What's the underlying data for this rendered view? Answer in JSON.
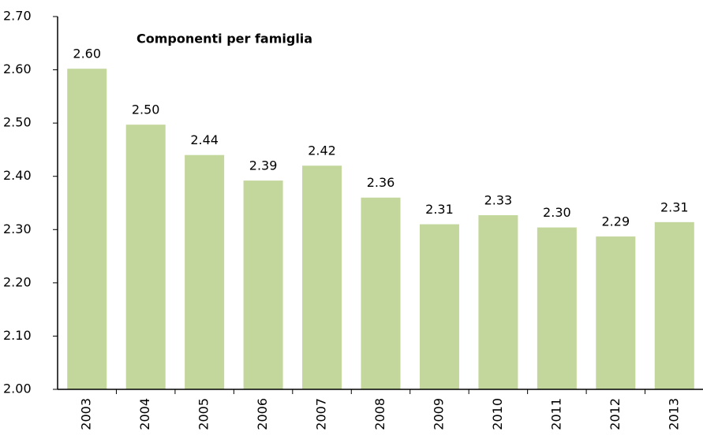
{
  "chart_data": {
    "type": "bar",
    "title": "Componenti per famiglia",
    "categories": [
      "2003",
      "2004",
      "2005",
      "2006",
      "2007",
      "2008",
      "2009",
      "2010",
      "2011",
      "2012",
      "2013"
    ],
    "values": [
      2.602,
      2.497,
      2.44,
      2.392,
      2.42,
      2.36,
      2.31,
      2.327,
      2.304,
      2.287,
      2.314
    ],
    "value_labels": [
      "2.60",
      "2.50",
      "2.44",
      "2.39",
      "2.42",
      "2.36",
      "2.31",
      "2.33",
      "2.30",
      "2.29",
      "2.31"
    ],
    "color": "#c3d69b",
    "ylim": [
      2.0,
      2.7
    ],
    "yticks": [
      {
        "value": 2.0,
        "label": "2.00"
      },
      {
        "value": 2.1,
        "label": "2.10"
      },
      {
        "value": 2.2,
        "label": "2.20"
      },
      {
        "value": 2.3,
        "label": "2.30"
      },
      {
        "value": 2.4,
        "label": "2.40"
      },
      {
        "value": 2.5,
        "label": "2.50"
      },
      {
        "value": 2.6,
        "label": "2.60"
      },
      {
        "value": 2.7,
        "label": "2.70"
      }
    ],
    "grid": false
  }
}
